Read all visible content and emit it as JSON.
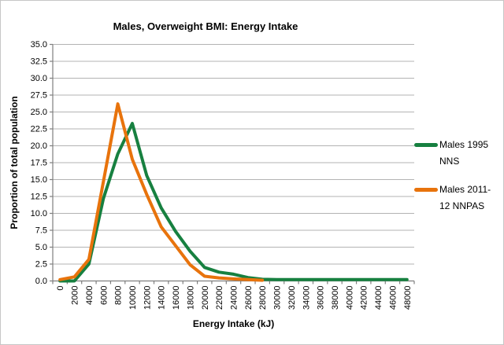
{
  "window": {
    "background": "#ffffff",
    "border_color": "#c6c6c6"
  },
  "chart_data": {
    "type": "line",
    "title": "Males, Overweight BMI: Energy Intake",
    "xlabel": "Energy Intake (kJ)",
    "ylabel": "Proportion of total population",
    "ylim": [
      0,
      35
    ],
    "ytick_step": 2.5,
    "ytick_decimals": 1,
    "grid": true,
    "legend_position": "right",
    "categories": [
      0,
      2000,
      4000,
      6000,
      8000,
      10000,
      12000,
      14000,
      16000,
      18000,
      20000,
      22000,
      24000,
      26000,
      28000,
      30000,
      32000,
      34000,
      36000,
      38000,
      40000,
      42000,
      44000,
      46000,
      48000
    ],
    "series": [
      {
        "id": "males-1995-nns",
        "name": "Males 1995 NNS",
        "color": "#178040",
        "values": [
          0,
          0,
          2.5,
          12.2,
          18.8,
          23.3,
          15.6,
          10.8,
          7.3,
          4.4,
          2.0,
          1.3,
          1.0,
          0.5,
          0.25,
          0.2,
          0.2,
          0.2,
          0.2,
          0.2,
          0.2,
          0.2,
          0.2,
          0.2,
          0.2
        ]
      },
      {
        "id": "males-2011-12-nnpas",
        "name": "Males 2011-12 NNPAS",
        "color": "#e8730c",
        "values": [
          0.2,
          0.6,
          3.2,
          14.7,
          26.2,
          18.0,
          12.8,
          8.0,
          5.2,
          2.4,
          0.7,
          0.45,
          0.3,
          0.2,
          0.1,
          null,
          null,
          null,
          null,
          null,
          null,
          null,
          null,
          null,
          null
        ]
      }
    ],
    "colors": {
      "axis": "#7f7f7f",
      "gridline": "#b3b3b3",
      "text": "#000000"
    }
  }
}
